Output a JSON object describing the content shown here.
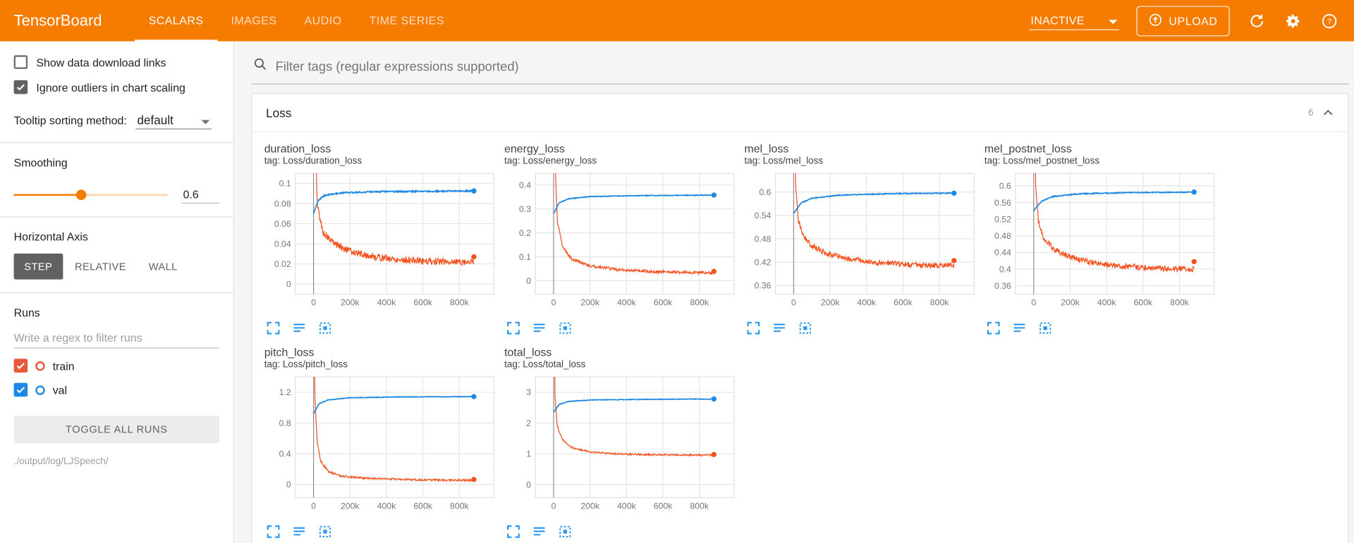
{
  "header": {
    "title": "TensorBoard",
    "tabs": [
      {
        "label": "SCALARS",
        "active": true
      },
      {
        "label": "IMAGES",
        "active": false
      },
      {
        "label": "AUDIO",
        "active": false
      },
      {
        "label": "TIME SERIES",
        "active": false
      }
    ],
    "status_label": "INACTIVE",
    "upload_label": "UPLOAD"
  },
  "sidebar": {
    "checkboxes": [
      {
        "label": "Show data download links",
        "checked": false
      },
      {
        "label": "Ignore outliers in chart scaling",
        "checked": true
      }
    ],
    "tooltip_sorting": {
      "label": "Tooltip sorting method:",
      "value": "default"
    },
    "smoothing": {
      "label": "Smoothing",
      "value": "0.6",
      "percent": 44
    },
    "horizontal_axis": {
      "label": "Horizontal Axis",
      "options": [
        {
          "label": "STEP",
          "active": true
        },
        {
          "label": "RELATIVE",
          "active": false
        },
        {
          "label": "WALL",
          "active": false
        }
      ]
    },
    "runs": {
      "title": "Runs",
      "filter_placeholder": "Write a regex to filter runs",
      "items": [
        {
          "label": "train",
          "color": "#e8593c",
          "checked": true
        },
        {
          "label": "val",
          "color": "#1e88e5",
          "checked": true
        }
      ],
      "toggle_all_label": "TOGGLE ALL RUNS",
      "log_path": "./output/log/LJSpeech/"
    }
  },
  "main": {
    "filter_placeholder": "Filter tags (regular expressions supported)",
    "section": {
      "title": "Loss",
      "count": "6"
    }
  },
  "colors": {
    "header_orange": "#f57c00",
    "icon_blue": "#2196f3",
    "train": "#f4511e",
    "val": "#1e88e5"
  },
  "chart_data": [
    {
      "type": "line",
      "title": "duration_loss",
      "tag": "tag: Loss/duration_loss",
      "xlim": [
        -100000,
        990000
      ],
      "ylim": [
        -0.01,
        0.11
      ],
      "xticks": [
        0,
        200000,
        400000,
        600000,
        800000
      ],
      "xtick_labels": [
        "0",
        "200k",
        "400k",
        "600k",
        "800k"
      ],
      "yticks": [
        0,
        0.02,
        0.04,
        0.06,
        0.08,
        0.1
      ],
      "ytick_labels": [
        "0",
        "0.02",
        "0.04",
        "0.06",
        "0.08",
        "0.1"
      ],
      "series": [
        {
          "name": "train",
          "color": "#f4511e",
          "noise": 0.0035,
          "end": 0.027,
          "points": [
            [
              0,
              0.4
            ],
            [
              8000,
              0.15
            ],
            [
              20000,
              0.08
            ],
            [
              50000,
              0.052
            ],
            [
              100000,
              0.042
            ],
            [
              180000,
              0.034
            ],
            [
              300000,
              0.028
            ],
            [
              450000,
              0.0245
            ],
            [
              650000,
              0.0225
            ],
            [
              880000,
              0.022
            ]
          ]
        },
        {
          "name": "val",
          "color": "#1e88e5",
          "noise": 0.0007,
          "points": [
            [
              0,
              0.07
            ],
            [
              25000,
              0.083
            ],
            [
              60000,
              0.088
            ],
            [
              150000,
              0.0905
            ],
            [
              350000,
              0.0918
            ],
            [
              880000,
              0.0925
            ]
          ]
        }
      ]
    },
    {
      "type": "line",
      "title": "energy_loss",
      "tag": "tag: Loss/energy_loss",
      "xlim": [
        -100000,
        990000
      ],
      "ylim": [
        -0.056,
        0.449
      ],
      "xticks": [
        0,
        200000,
        400000,
        600000,
        800000
      ],
      "xtick_labels": [
        "0",
        "200k",
        "400k",
        "600k",
        "800k"
      ],
      "yticks": [
        0,
        0.1,
        0.2,
        0.3,
        0.4
      ],
      "ytick_labels": [
        "0",
        "0.1",
        "0.2",
        "0.3",
        "0.4"
      ],
      "series": [
        {
          "name": "train",
          "color": "#f4511e",
          "noise": 0.006,
          "end": 0.039,
          "points": [
            [
              0,
              1.5
            ],
            [
              8000,
              0.5
            ],
            [
              20000,
              0.25
            ],
            [
              50000,
              0.14
            ],
            [
              100000,
              0.09
            ],
            [
              200000,
              0.062
            ],
            [
              350000,
              0.047
            ],
            [
              550000,
              0.038
            ],
            [
              880000,
              0.032
            ]
          ]
        },
        {
          "name": "val",
          "color": "#1e88e5",
          "noise": 0.0015,
          "points": [
            [
              0,
              0.28
            ],
            [
              30000,
              0.325
            ],
            [
              80000,
              0.342
            ],
            [
              200000,
              0.352
            ],
            [
              500000,
              0.356
            ],
            [
              880000,
              0.358
            ]
          ]
        }
      ]
    },
    {
      "type": "line",
      "title": "mel_loss",
      "tag": "tag: Loss/mel_loss",
      "xlim": [
        -100000,
        990000
      ],
      "ylim": [
        0.338,
        0.648
      ],
      "xticks": [
        0,
        200000,
        400000,
        600000,
        800000
      ],
      "xtick_labels": [
        "0",
        "200k",
        "400k",
        "600k",
        "800k"
      ],
      "yticks": [
        0.36,
        0.42,
        0.48,
        0.54,
        0.6
      ],
      "ytick_labels": [
        "0.36",
        "0.42",
        "0.48",
        "0.54",
        "0.6"
      ],
      "series": [
        {
          "name": "train",
          "color": "#f4511e",
          "noise": 0.007,
          "end": 0.424,
          "points": [
            [
              0,
              1.2
            ],
            [
              10000,
              0.62
            ],
            [
              25000,
              0.53
            ],
            [
              50000,
              0.49
            ],
            [
              100000,
              0.462
            ],
            [
              180000,
              0.443
            ],
            [
              300000,
              0.428
            ],
            [
              450000,
              0.419
            ],
            [
              650000,
              0.413
            ],
            [
              880000,
              0.411
            ]
          ]
        },
        {
          "name": "val",
          "color": "#1e88e5",
          "noise": 0.0012,
          "points": [
            [
              0,
              0.545
            ],
            [
              40000,
              0.572
            ],
            [
              100000,
              0.584
            ],
            [
              250000,
              0.592
            ],
            [
              550000,
              0.596
            ],
            [
              880000,
              0.597
            ]
          ]
        }
      ]
    },
    {
      "type": "line",
      "title": "mel_postnet_loss",
      "tag": "tag: Loss/mel_postnet_loss",
      "xlim": [
        -100000,
        990000
      ],
      "ylim": [
        0.34,
        0.63
      ],
      "xticks": [
        0,
        200000,
        400000,
        600000,
        800000
      ],
      "xtick_labels": [
        "0",
        "200k",
        "400k",
        "600k",
        "800k"
      ],
      "yticks": [
        0.36,
        0.4,
        0.44,
        0.48,
        0.52,
        0.56,
        0.6
      ],
      "ytick_labels": [
        "0.36",
        "0.4",
        "0.44",
        "0.48",
        "0.52",
        "0.56",
        "0.6"
      ],
      "series": [
        {
          "name": "train",
          "color": "#f4511e",
          "noise": 0.007,
          "end": 0.418,
          "points": [
            [
              0,
              1.2
            ],
            [
              10000,
              0.6
            ],
            [
              25000,
              0.515
            ],
            [
              50000,
              0.478
            ],
            [
              100000,
              0.452
            ],
            [
              180000,
              0.432
            ],
            [
              300000,
              0.417
            ],
            [
              450000,
              0.408
            ],
            [
              650000,
              0.402
            ],
            [
              880000,
              0.4
            ]
          ]
        },
        {
          "name": "val",
          "color": "#1e88e5",
          "noise": 0.0012,
          "points": [
            [
              0,
              0.54
            ],
            [
              40000,
              0.562
            ],
            [
              100000,
              0.574
            ],
            [
              250000,
              0.581
            ],
            [
              550000,
              0.584
            ],
            [
              880000,
              0.585
            ]
          ]
        }
      ]
    },
    {
      "type": "line",
      "title": "pitch_loss",
      "tag": "tag: Loss/pitch_loss",
      "xlim": [
        -100000,
        990000
      ],
      "ylim": [
        -0.17,
        1.4
      ],
      "xticks": [
        0,
        200000,
        400000,
        600000,
        800000
      ],
      "xtick_labels": [
        "0",
        "200k",
        "400k",
        "600k",
        "800k"
      ],
      "yticks": [
        0,
        0.4,
        0.8,
        1.2
      ],
      "ytick_labels": [
        "0",
        "0.4",
        "0.8",
        "1.2"
      ],
      "series": [
        {
          "name": "train",
          "color": "#f4511e",
          "noise": 0.013,
          "end": 0.066,
          "points": [
            [
              0,
              3
            ],
            [
              8000,
              1.1
            ],
            [
              20000,
              0.55
            ],
            [
              40000,
              0.3
            ],
            [
              80000,
              0.17
            ],
            [
              150000,
              0.11
            ],
            [
              300000,
              0.078
            ],
            [
              550000,
              0.062
            ],
            [
              880000,
              0.055
            ]
          ]
        },
        {
          "name": "val",
          "color": "#1e88e5",
          "noise": 0.004,
          "points": [
            [
              0,
              0.92
            ],
            [
              30000,
              1.05
            ],
            [
              80000,
              1.1
            ],
            [
              200000,
              1.128
            ],
            [
              500000,
              1.14
            ],
            [
              880000,
              1.143
            ]
          ]
        }
      ]
    },
    {
      "type": "line",
      "title": "total_loss",
      "tag": "tag: Loss/total_loss",
      "xlim": [
        -100000,
        990000
      ],
      "ylim": [
        -0.42,
        3.5
      ],
      "xticks": [
        0,
        200000,
        400000,
        600000,
        800000
      ],
      "xtick_labels": [
        "0",
        "200k",
        "400k",
        "600k",
        "800k"
      ],
      "yticks": [
        0,
        1,
        2,
        3
      ],
      "ytick_labels": [
        "0",
        "1",
        "2",
        "3"
      ],
      "series": [
        {
          "name": "train",
          "color": "#f4511e",
          "noise": 0.028,
          "end": 0.98,
          "points": [
            [
              0,
              7
            ],
            [
              8000,
              2.8
            ],
            [
              20000,
              1.9
            ],
            [
              50000,
              1.45
            ],
            [
              100000,
              1.2
            ],
            [
              200000,
              1.06
            ],
            [
              350000,
              1.0
            ],
            [
              550000,
              0.97
            ],
            [
              880000,
              0.955
            ]
          ]
        },
        {
          "name": "val",
          "color": "#1e88e5",
          "noise": 0.01,
          "points": [
            [
              0,
              2.35
            ],
            [
              30000,
              2.6
            ],
            [
              80000,
              2.7
            ],
            [
              200000,
              2.75
            ],
            [
              500000,
              2.77
            ],
            [
              880000,
              2.78
            ]
          ]
        }
      ]
    }
  ]
}
